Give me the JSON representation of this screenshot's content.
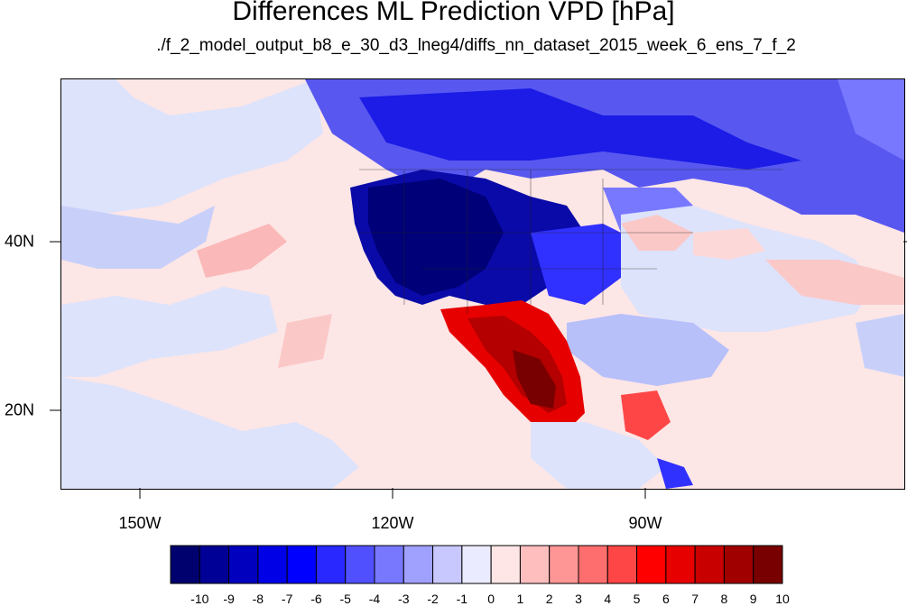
{
  "title": "Differences ML Prediction VPD [hPa]",
  "subtitle": "./f_2_model_output_b8_e_30_d3_lneg4/diffs_nn_dataset_2015_week_6_ens_7_f_2",
  "map": {
    "projection": "cylindrical-equidistant",
    "longitude_ticks": [
      "150W",
      "120W",
      "90W"
    ],
    "latitude_ticks": [
      "40N",
      "20N"
    ],
    "regions": [
      {
        "name": "western-us-deficit",
        "level": -10
      },
      {
        "name": "canada-deficit",
        "level": -6
      },
      {
        "name": "mexico-excess",
        "level": 10
      },
      {
        "name": "central-america-excess",
        "level": 6
      }
    ]
  },
  "colorbar": {
    "labels": [
      "-10",
      "-9",
      "-8",
      "-7",
      "-6",
      "-5",
      "-4",
      "-3",
      "-2",
      "-1",
      "0",
      "1",
      "2",
      "3",
      "4",
      "5",
      "6",
      "7",
      "8",
      "9",
      "10"
    ],
    "colors": [
      "#00006e",
      "#000096",
      "#0000be",
      "#0000e6",
      "#0000ff",
      "#2828ff",
      "#5050ff",
      "#7878ff",
      "#a0a0ff",
      "#c8c8ff",
      "#ebebff",
      "#ffe6e6",
      "#ffbebe",
      "#ff9696",
      "#ff6e6e",
      "#ff4646",
      "#ff0000",
      "#e60000",
      "#c80000",
      "#a00000",
      "#780000"
    ]
  }
}
